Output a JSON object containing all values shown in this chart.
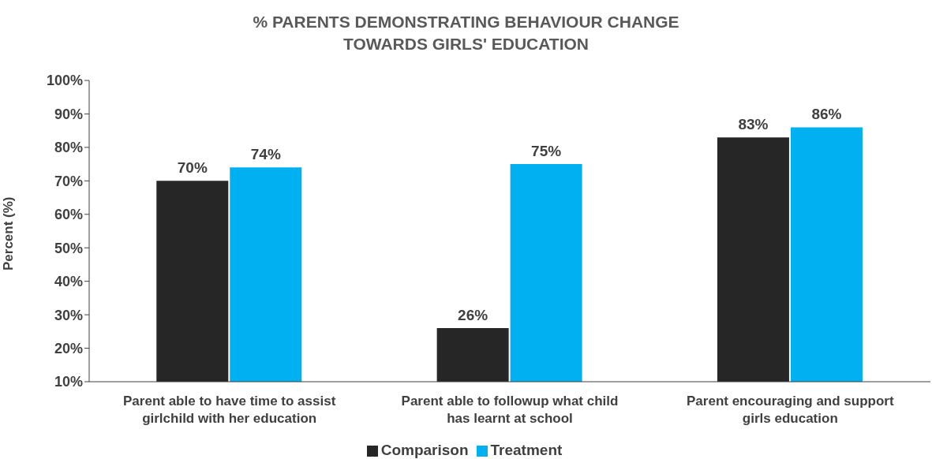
{
  "chart_data": {
    "type": "bar",
    "title": "% PARENTS DEMONSTRATING BEHAVIOUR CHANGE TOWARDS GIRLS' EDUCATION",
    "ylabel": "Percent (%)",
    "categories": [
      "Parent able to have time to  assist girlchild with her education",
      "Parent able to followup what child has learnt at school",
      "Parent encouraging and support girls education"
    ],
    "series": [
      {
        "name": "Comparison",
        "color": "#262626",
        "values": [
          70,
          26,
          83
        ],
        "value_labels": [
          "70%",
          "26%",
          "83%"
        ]
      },
      {
        "name": "Treatment",
        "color": "#00b0f0",
        "values": [
          74,
          75,
          86
        ],
        "value_labels": [
          "74%",
          "75%",
          "86%"
        ]
      }
    ],
    "ylim": [
      10,
      100
    ],
    "yticks": [
      {
        "value": 10,
        "label": "10%"
      },
      {
        "value": 20,
        "label": "20%"
      },
      {
        "value": 30,
        "label": "30%"
      },
      {
        "value": 40,
        "label": "40%"
      },
      {
        "value": 50,
        "label": "50%"
      },
      {
        "value": 60,
        "label": "60%"
      },
      {
        "value": 70,
        "label": "70%"
      },
      {
        "value": 80,
        "label": "80%"
      },
      {
        "value": 90,
        "label": "90%"
      },
      {
        "value": 100,
        "label": "100%"
      }
    ],
    "grid": false,
    "legend": "bottom"
  }
}
